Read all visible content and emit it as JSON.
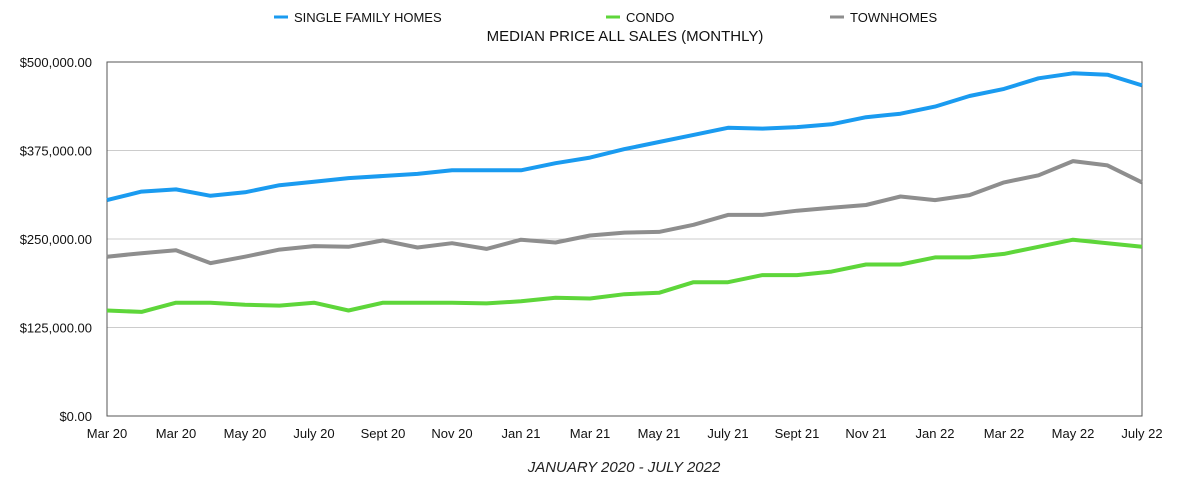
{
  "chart_data": {
    "type": "line",
    "title": "MEDIAN PRICE ALL SALES (MONTHLY)",
    "subtitle": "JANUARY 2020 - JULY 2022",
    "xlabel": "",
    "ylabel": "",
    "ylim": [
      0,
      500000
    ],
    "y_ticks": [
      {
        "value": 0,
        "label": "$0.00"
      },
      {
        "value": 125000,
        "label": "$125,000.00"
      },
      {
        "value": 250000,
        "label": "$250,000.00"
      },
      {
        "value": 375000,
        "label": "$375,000.00"
      },
      {
        "value": 500000,
        "label": "$500,000.00"
      }
    ],
    "x_tick_labels": [
      "Mar 20",
      "Mar 20",
      "May 20",
      "July 20",
      "Sept 20",
      "Nov 20",
      "Jan 21",
      "Mar 21",
      "May 21",
      "July 21",
      "Sept 21",
      "Nov 21",
      "Jan 22",
      "Mar 22",
      "May 22",
      "July 22"
    ],
    "grid": true,
    "legend_position": "top-center",
    "series": [
      {
        "name": "SINGLE FAMILY HOMES",
        "color": "#1a9bf0",
        "values": [
          305000,
          317000,
          320000,
          311000,
          316000,
          326000,
          331000,
          336000,
          339000,
          342000,
          347000,
          347000,
          347000,
          357000,
          365000,
          377000,
          387000,
          397000,
          407000,
          406000,
          408000,
          412000,
          422000,
          427000,
          437000,
          452000,
          462000,
          477000,
          484000,
          482000,
          467000
        ]
      },
      {
        "name": "CONDO",
        "color": "#5ed63a",
        "values": [
          149000,
          147000,
          160000,
          160000,
          157000,
          156000,
          160000,
          149000,
          160000,
          160000,
          160000,
          159000,
          162000,
          167000,
          166000,
          172000,
          174000,
          189000,
          189000,
          199000,
          199000,
          204000,
          214000,
          214000,
          224000,
          224000,
          229000,
          239000,
          249000,
          244000,
          239000
        ]
      },
      {
        "name": "TOWNHOMES",
        "color": "#8e8e8e",
        "values": [
          225000,
          230000,
          234000,
          216000,
          225000,
          235000,
          240000,
          239000,
          248000,
          238000,
          244000,
          236000,
          249000,
          245000,
          255000,
          259000,
          260000,
          270000,
          284000,
          284000,
          290000,
          294000,
          298000,
          310000,
          305000,
          312000,
          330000,
          340000,
          360000,
          354000,
          330000
        ]
      }
    ]
  }
}
